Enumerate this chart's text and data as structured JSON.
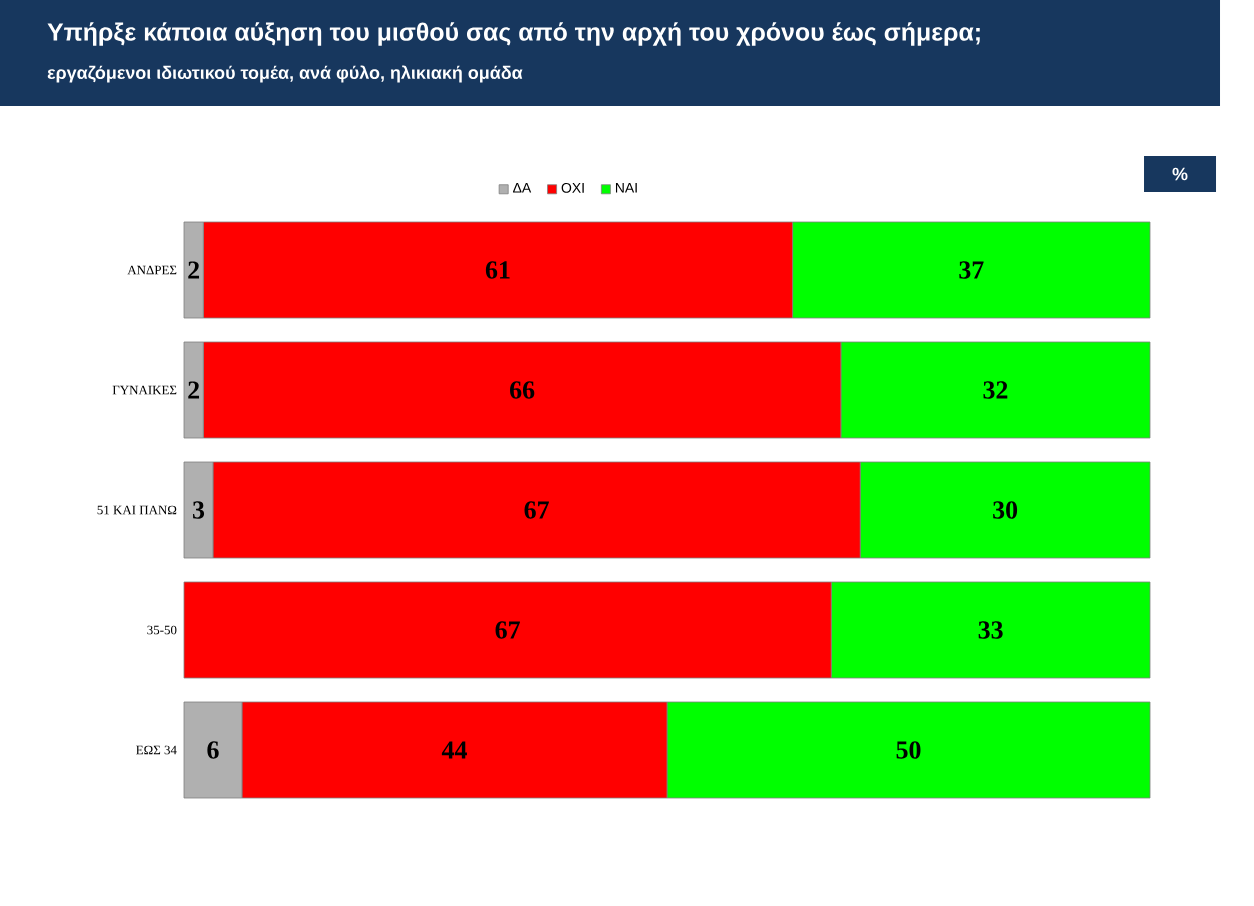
{
  "chart_data": {
    "type": "bar",
    "orientation": "horizontal",
    "stacked": true,
    "data_labels": true,
    "legend": "top",
    "title": "Υπήρξε κάποια αύξηση του μισθού σας από την αρχή του χρόνου έως σήμερα;",
    "subtitle": "εργαζόμενοι ιδιωτικού τομέα, ανά φύλο, ηλικιακή ομάδα",
    "annotations": [
      "%"
    ],
    "categories": [
      "ΑΝΔΡΕΣ",
      "ΓΥΝΑΙΚΕΣ",
      "51 ΚΑΙ ΠΑΝΩ",
      "35-50",
      "ΕΩΣ 34"
    ],
    "series": [
      {
        "name": "ΔΑ",
        "color": "#b0b0b0",
        "values": [
          2,
          2,
          3,
          null,
          6
        ]
      },
      {
        "name": "ΟΧΙ",
        "color": "#ff0000",
        "values": [
          61,
          66,
          67,
          67,
          44
        ]
      },
      {
        "name": "ΝΑΙ",
        "color": "#00ff00",
        "values": [
          37,
          32,
          30,
          33,
          50
        ]
      }
    ]
  }
}
